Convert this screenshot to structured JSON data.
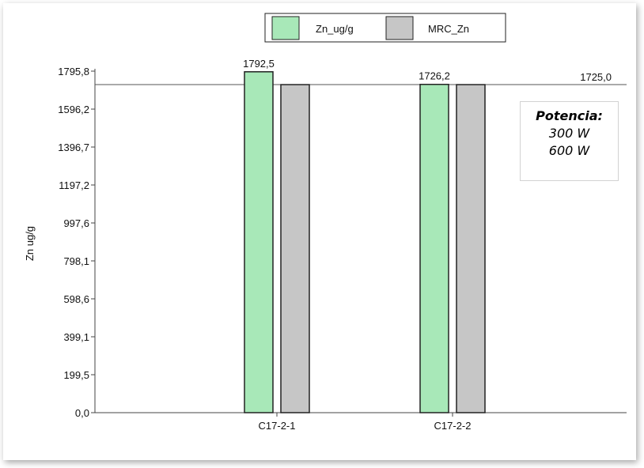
{
  "chart_data": {
    "type": "bar",
    "categories": [
      "C17-2-1",
      "C17-2-2"
    ],
    "series": [
      {
        "name": "Zn_ug/g",
        "values": [
          1792.5,
          1726.2
        ],
        "color": "#a8e8b8"
      },
      {
        "name": "MRC_Zn",
        "values": [
          1725.0,
          1725.0
        ],
        "color": "#c6c6c6"
      }
    ],
    "data_labels": [
      "1792,5",
      "1726,2"
    ],
    "reference_line": {
      "value": 1725.0,
      "label": "1725,0"
    },
    "ylabel": "Zn ug/g",
    "xlabel": "",
    "ylim": [
      0,
      1795.8
    ],
    "yticks": [
      0.0,
      199.5,
      399.1,
      598.6,
      798.1,
      997.6,
      1197.2,
      1396.7,
      1596.2,
      1795.8
    ],
    "ytick_labels": [
      "0,0",
      "199,5",
      "399,1",
      "598,6",
      "798,1",
      "997,6",
      "1197,2",
      "1396,7",
      "1596,2",
      "1795,8"
    ],
    "legend_position": "top-center",
    "grid": false
  },
  "note": {
    "title": "Potencia:",
    "lines": [
      "300 W",
      "600 W"
    ]
  }
}
